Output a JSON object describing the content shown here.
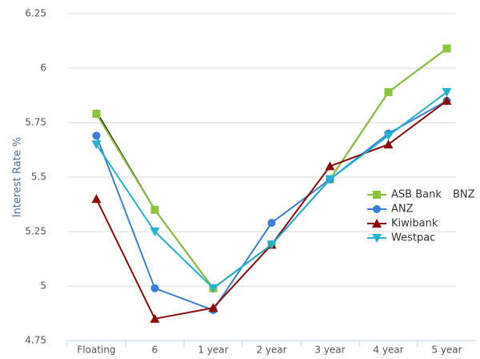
{
  "chart_data": {
    "type": "line",
    "y_label": "Interest Rate %",
    "categories": [
      "Floating",
      "6",
      "1 year",
      "2 year",
      "3 year",
      "4 year",
      "5 year"
    ],
    "series": [
      {
        "name": "ASB Bank",
        "color": "#8cc43c",
        "marker": "square",
        "values": [
          5.79,
          5.35,
          4.99,
          5.19,
          5.49,
          5.89,
          6.09
        ]
      },
      {
        "name": "BNZ",
        "color": "#222222",
        "marker": "none",
        "values": [
          5.8,
          5.35,
          4.99,
          5.19,
          5.49,
          5.89,
          6.09
        ]
      },
      {
        "name": "ANZ",
        "color": "#3a7fd5",
        "marker": "circle",
        "values": [
          5.69,
          4.99,
          4.89,
          5.29,
          5.49,
          5.7,
          5.85
        ]
      },
      {
        "name": "Kiwibank",
        "color": "#8b0a0a",
        "marker": "triangle",
        "values": [
          5.4,
          4.85,
          4.9,
          5.19,
          5.55,
          5.65,
          5.85
        ]
      },
      {
        "name": "Westpac",
        "color": "#22b4cf",
        "marker": "triangle-down",
        "values": [
          5.65,
          5.25,
          4.99,
          5.19,
          5.49,
          5.69,
          5.89
        ]
      }
    ],
    "ylim": [
      4.75,
      6.25
    ],
    "yticks": [
      4.75,
      5,
      5.25,
      5.5,
      5.75,
      6,
      6.25
    ],
    "grid": true
  }
}
